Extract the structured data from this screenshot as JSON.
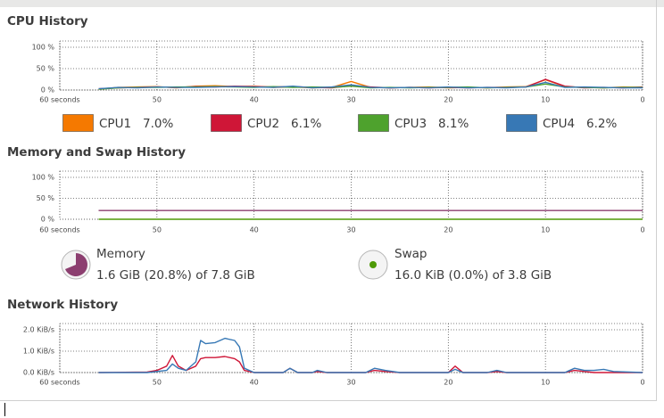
{
  "cpu": {
    "title": "CPU History",
    "xlim": [
      60,
      0
    ],
    "ylim": [
      0,
      100
    ],
    "xticks": [
      {
        "value": 60,
        "label": "60 seconds"
      },
      50,
      40,
      30,
      20,
      10,
      0
    ],
    "yticks": [
      {
        "value": 100,
        "label": "100 %"
      },
      {
        "value": 50,
        "label": "50 %"
      },
      {
        "value": 0,
        "label": "0 %"
      }
    ],
    "x": [
      56,
      54,
      52,
      50,
      48,
      46,
      44,
      42,
      40,
      38,
      36,
      34,
      32,
      30,
      28,
      26,
      24,
      22,
      20,
      18,
      16,
      14,
      12,
      10,
      8,
      6,
      4,
      2,
      0
    ],
    "series": [
      {
        "name": "CPU1",
        "percent": "7.0%",
        "color": "#f57900",
        "values": [
          2,
          6,
          7,
          8,
          5,
          9,
          10,
          8,
          9,
          6,
          7,
          5,
          6,
          20,
          6,
          5,
          6,
          7,
          5,
          6,
          5,
          7,
          8,
          24,
          8,
          6,
          5,
          7,
          6
        ]
      },
      {
        "name": "CPU2",
        "percent": "6.1%",
        "color": "#cf1637",
        "values": [
          3,
          5,
          6,
          7,
          6,
          8,
          7,
          9,
          8,
          7,
          8,
          6,
          5,
          10,
          7,
          5,
          6,
          5,
          6,
          5,
          6,
          6,
          7,
          25,
          9,
          5,
          6,
          5,
          7
        ]
      },
      {
        "name": "CPU3",
        "percent": "8.1%",
        "color": "#4ea22d",
        "values": [
          2,
          5,
          6,
          6,
          7,
          7,
          8,
          7,
          6,
          8,
          6,
          7,
          6,
          9,
          5,
          6,
          5,
          6,
          6,
          7,
          5,
          6,
          7,
          14,
          7,
          6,
          5,
          6,
          6
        ]
      },
      {
        "name": "CPU4",
        "percent": "6.2%",
        "color": "#3778b5",
        "values": [
          3,
          6,
          5,
          7,
          6,
          6,
          7,
          8,
          7,
          6,
          9,
          5,
          7,
          12,
          6,
          5,
          6,
          5,
          7,
          5,
          6,
          5,
          7,
          18,
          6,
          7,
          6,
          5,
          5
        ]
      }
    ]
  },
  "memory": {
    "title": "Memory and Swap History",
    "xlim": [
      60,
      0
    ],
    "ylim": [
      0,
      100
    ],
    "xticks": [
      {
        "value": 60,
        "label": "60 seconds"
      },
      50,
      40,
      30,
      20,
      10,
      0
    ],
    "yticks": [
      {
        "value": 100,
        "label": "100 %"
      },
      {
        "value": 50,
        "label": "50 %"
      },
      {
        "value": 0,
        "label": "0 %"
      }
    ],
    "x": [
      56,
      0
    ],
    "series": [
      {
        "name": "Memory",
        "detail": "1.6 GiB (20.8%) of 7.8 GiB",
        "color": "#8c3f70",
        "values": [
          20.8,
          20.8
        ]
      },
      {
        "name": "Swap",
        "detail": "16.0 KiB (0.0%) of 3.8 GiB",
        "color": "#4e9a06",
        "values": [
          0,
          0
        ]
      }
    ]
  },
  "network": {
    "title": "Network History",
    "xlim": [
      60,
      0
    ],
    "ylim": [
      0,
      2
    ],
    "xticks": [
      {
        "value": 60,
        "label": "60 seconds"
      },
      50,
      40,
      30,
      20,
      10,
      0
    ],
    "yticks": [
      {
        "value": 2,
        "label": "2.0 KiB/s"
      },
      {
        "value": 1,
        "label": "1.0 KiB/s"
      },
      {
        "value": 0,
        "label": "0.0 KiB/s"
      }
    ],
    "x": [
      56,
      51,
      50,
      49,
      48.4,
      47.8,
      47,
      46,
      45.5,
      45,
      44,
      43,
      42,
      41.5,
      41,
      40,
      37,
      36.3,
      35.5,
      34,
      33.5,
      32.5,
      28.5,
      27.6,
      26.5,
      25,
      20,
      19.3,
      18.5,
      16,
      15,
      14,
      8,
      7,
      6,
      5,
      4,
      3,
      0
    ],
    "series": [
      {
        "color": "#cf1637",
        "values": [
          0,
          0.02,
          0.1,
          0.3,
          0.8,
          0.3,
          0.1,
          0.3,
          0.65,
          0.7,
          0.7,
          0.75,
          0.65,
          0.5,
          0.1,
          0,
          0,
          0.2,
          0,
          0,
          0.05,
          0,
          0,
          0.1,
          0.05,
          0,
          0,
          0.3,
          0,
          0,
          0.05,
          0,
          0,
          0.1,
          0.05,
          0,
          0,
          0,
          0
        ]
      },
      {
        "color": "#3778b5",
        "values": [
          0,
          0,
          0.05,
          0.1,
          0.4,
          0.2,
          0.1,
          0.5,
          1.5,
          1.35,
          1.4,
          1.6,
          1.5,
          1.2,
          0.2,
          0,
          0,
          0.2,
          0,
          0,
          0.1,
          0,
          0,
          0.2,
          0.1,
          0,
          0,
          0.15,
          0,
          0,
          0.1,
          0,
          0,
          0.2,
          0.1,
          0.1,
          0.15,
          0.05,
          0
        ]
      }
    ]
  }
}
